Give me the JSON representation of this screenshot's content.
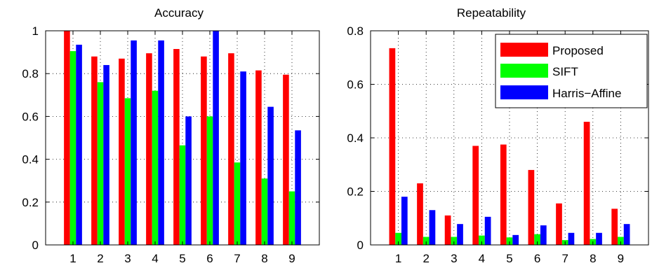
{
  "chart_data": [
    {
      "type": "bar",
      "title": "Accuracy",
      "xlabel": "",
      "ylabel": "",
      "categories": [
        "1",
        "2",
        "3",
        "4",
        "5",
        "6",
        "7",
        "8",
        "9"
      ],
      "ylim": [
        0,
        1
      ],
      "yticks": [
        "0",
        "0.2",
        "0.4",
        "0.6",
        "0.8",
        "1"
      ],
      "grid": "dotted",
      "series": [
        {
          "name": "Proposed",
          "color": "#ff0000",
          "values": [
            1.0,
            0.88,
            0.87,
            0.895,
            0.915,
            0.88,
            0.895,
            0.815,
            0.795
          ]
        },
        {
          "name": "SIFT",
          "color": "#00ff00",
          "values": [
            0.905,
            0.76,
            0.685,
            0.72,
            0.465,
            0.6,
            0.385,
            0.31,
            0.25
          ]
        },
        {
          "name": "Harris−Affine",
          "color": "#0000ff",
          "values": [
            0.935,
            0.84,
            0.955,
            0.955,
            0.6,
            1.0,
            0.81,
            0.645,
            0.535
          ]
        }
      ],
      "legend": "none"
    },
    {
      "type": "bar",
      "title": "Repeatability",
      "xlabel": "",
      "ylabel": "",
      "categories": [
        "1",
        "2",
        "3",
        "4",
        "5",
        "6",
        "7",
        "8",
        "9"
      ],
      "ylim": [
        0,
        0.8
      ],
      "yticks": [
        "0",
        "0.2",
        "0.4",
        "0.6",
        "0.8"
      ],
      "grid": "dotted",
      "series": [
        {
          "name": "Proposed",
          "color": "#ff0000",
          "values": [
            0.735,
            0.23,
            0.11,
            0.37,
            0.375,
            0.28,
            0.155,
            0.46,
            0.135
          ]
        },
        {
          "name": "SIFT",
          "color": "#00ff00",
          "values": [
            0.045,
            0.03,
            0.03,
            0.035,
            0.028,
            0.04,
            0.018,
            0.022,
            0.03
          ]
        },
        {
          "name": "Harris−Affine",
          "color": "#0000ff",
          "values": [
            0.18,
            0.13,
            0.078,
            0.105,
            0.037,
            0.073,
            0.045,
            0.045,
            0.078
          ]
        }
      ],
      "legend": "top-right"
    }
  ]
}
